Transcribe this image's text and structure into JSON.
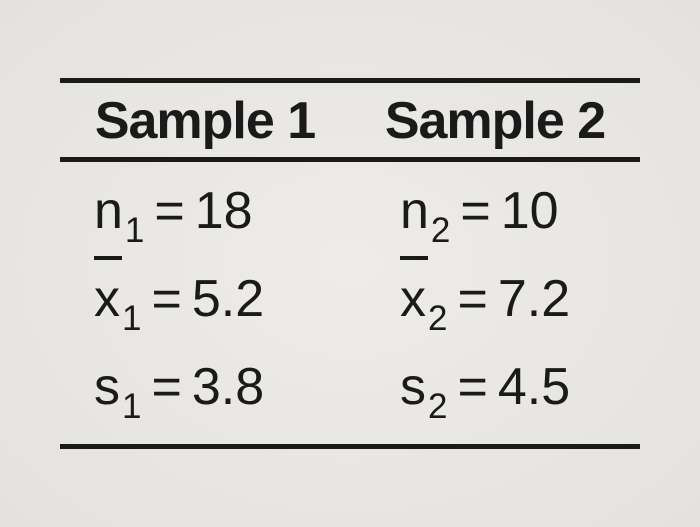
{
  "table": {
    "headers": [
      "Sample 1",
      "Sample 2"
    ],
    "rows": [
      {
        "col1": {
          "symbol": "n",
          "subscript": "1",
          "bar": false,
          "value": "18"
        },
        "col2": {
          "symbol": "n",
          "subscript": "2",
          "bar": false,
          "value": "10"
        }
      },
      {
        "col1": {
          "symbol": "x",
          "subscript": "1",
          "bar": true,
          "value": "5.2"
        },
        "col2": {
          "symbol": "x",
          "subscript": "2",
          "bar": true,
          "value": "7.2"
        }
      },
      {
        "col1": {
          "symbol": "s",
          "subscript": "1",
          "bar": false,
          "value": "3.8"
        },
        "col2": {
          "symbol": "s",
          "subscript": "2",
          "bar": false,
          "value": "4.5"
        }
      }
    ],
    "colors": {
      "text": "#1a1a1a",
      "background": "#e8e6e2",
      "border": "#1a1a1a"
    },
    "font_sizes": {
      "header": 52,
      "body": 52,
      "subscript": 35
    }
  }
}
